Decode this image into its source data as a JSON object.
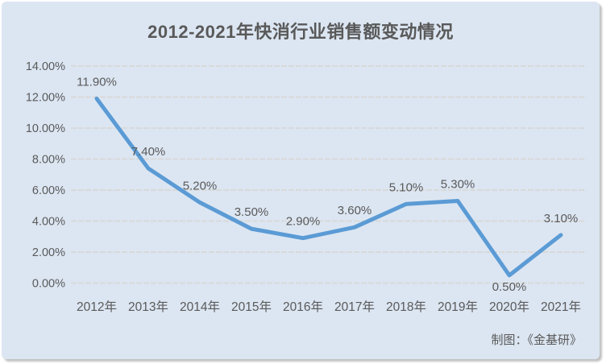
{
  "title": "2012-2021年快消行业销售额变动情况",
  "footer": "制图：《金基研》",
  "colors": {
    "card_bg": "#dce6f2",
    "line": "#5b9bd5",
    "text": "#595959",
    "gridline": "#d9d9d9"
  },
  "chart_data": {
    "type": "line",
    "title": "2012-2021年快消行业销售额变动情况",
    "categories": [
      "2012年",
      "2013年",
      "2014年",
      "2015年",
      "2016年",
      "2017年",
      "2018年",
      "2019年",
      "2020年",
      "2021年"
    ],
    "values": [
      11.9,
      7.4,
      5.2,
      3.5,
      2.9,
      3.6,
      5.1,
      5.3,
      0.5,
      3.1
    ],
    "point_labels": [
      "11.90%",
      "7.40%",
      "5.20%",
      "3.50%",
      "2.90%",
      "3.60%",
      "5.10%",
      "5.30%",
      "0.50%",
      "3.10%"
    ],
    "y_ticks": [
      {
        "value": 0,
        "label": "0.00%"
      },
      {
        "value": 2,
        "label": "2.00%"
      },
      {
        "value": 4,
        "label": "4.00%"
      },
      {
        "value": 6,
        "label": "6.00%"
      },
      {
        "value": 8,
        "label": "8.00%"
      },
      {
        "value": 10,
        "label": "10.00%"
      },
      {
        "value": 12,
        "label": "12.00%"
      },
      {
        "value": 14,
        "label": "14.00%"
      }
    ],
    "ylim": [
      0,
      14
    ],
    "xlabel": "",
    "ylabel": "",
    "grid": true,
    "legend": false,
    "labels_below_indices": [
      8
    ],
    "credit": "制图：《金基研》"
  }
}
